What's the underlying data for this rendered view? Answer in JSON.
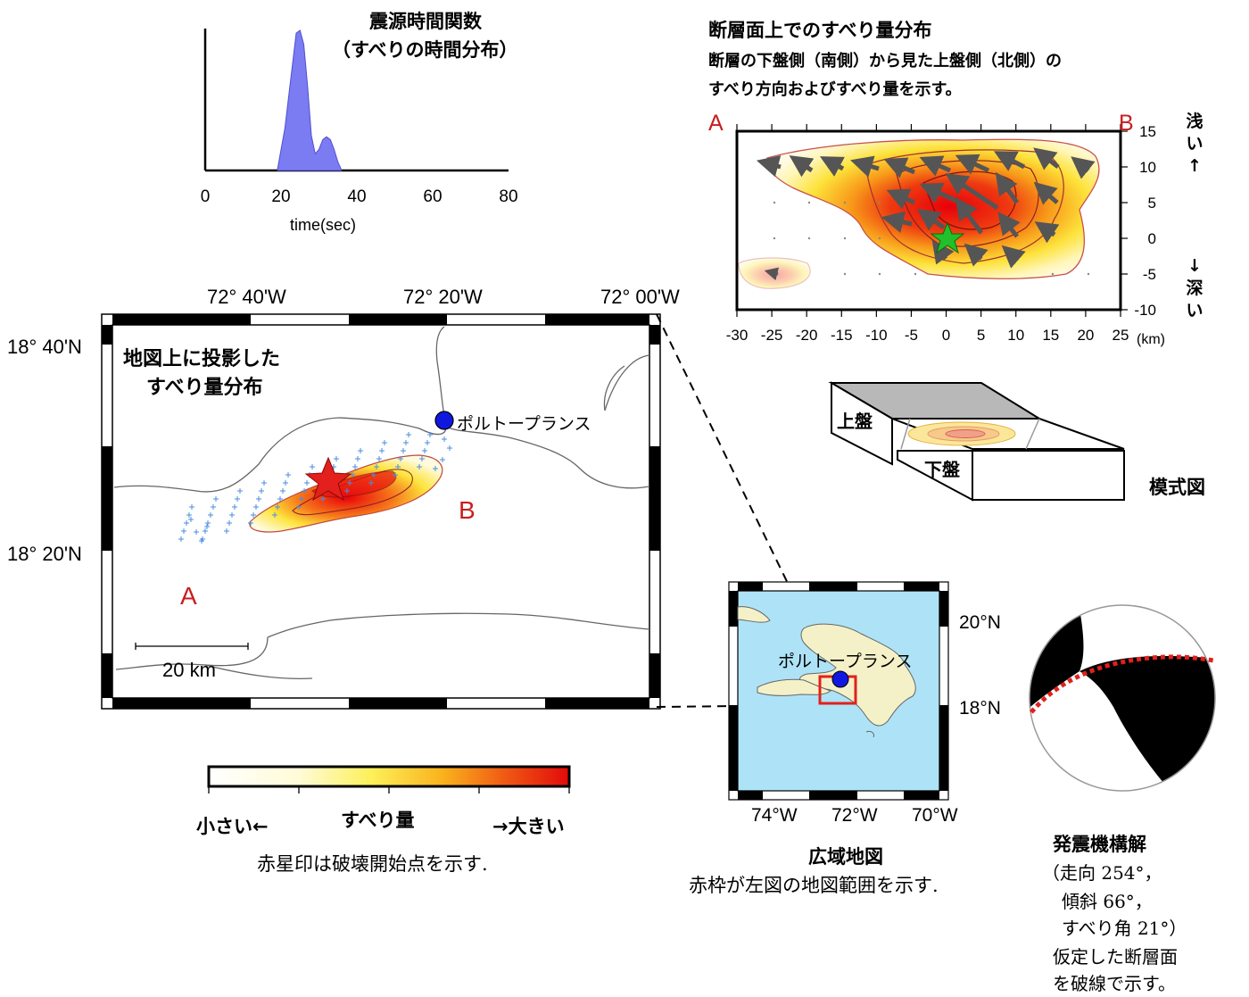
{
  "stf": {
    "title": "震源時間関数",
    "subtitle": "（すべりの時間分布）",
    "xlabel": "time(sec)",
    "xticks": [
      "0",
      "20",
      "40",
      "60",
      "80"
    ],
    "pulse_color": "#7b7bf2"
  },
  "chart_data": {
    "type": "area",
    "title": "震源時間関数",
    "xlabel": "time(sec)",
    "xlim": [
      0,
      80
    ],
    "x": [
      19,
      21,
      23,
      24,
      25,
      26,
      27,
      28,
      29,
      30,
      31,
      32,
      33,
      34,
      35,
      36
    ],
    "values": [
      0,
      0.3,
      0.75,
      0.98,
      1.0,
      0.9,
      0.6,
      0.25,
      0.12,
      0.15,
      0.22,
      0.24,
      0.22,
      0.15,
      0.06,
      0
    ]
  },
  "fault_slip": {
    "title": "断層面上でのすべり量分布",
    "desc_line1": "断層の下盤側（南側）から見た上盤側（北側）の",
    "desc_line2": "すべり方向およびすべり量を示す。",
    "label_a": "A",
    "label_b": "B",
    "xticks": [
      "-30",
      "-25",
      "-20",
      "-15",
      "-10",
      "-5",
      "0",
      "5",
      "10",
      "15",
      "20",
      "25"
    ],
    "yticks": [
      "15",
      "10",
      "5",
      "0",
      "-5",
      "-10"
    ],
    "km_label": "(km)",
    "shallow_chars": [
      "浅",
      "い",
      "↑"
    ],
    "deep_chars": [
      "↓",
      "深",
      "い"
    ],
    "hypocenter_color": "#22c02a"
  },
  "schematic": {
    "upper_label": "上盤",
    "lower_label": "下盤",
    "caption": "模式図"
  },
  "map": {
    "lon_labels": [
      "72° 40'W",
      "72° 20'W",
      "72° 00'W"
    ],
    "lat_labels": [
      "18° 40'N",
      "18° 20'N"
    ],
    "title_line1": "地図上に投影した",
    "title_line2": "すべり量分布",
    "city": "ポルトープランス",
    "label_a": "A",
    "label_b": "B",
    "scale": "20 km",
    "epicenter_color": "#e3201b",
    "city_color": "#1018e0"
  },
  "colorbar": {
    "small": "小さい←",
    "mid": "すべり量",
    "large": "→大きい",
    "note": "赤星印は破壊開始点を示す."
  },
  "regional": {
    "lat_labels": [
      "20°N",
      "18°N"
    ],
    "lon_labels": [
      "74°W",
      "72°W",
      "70°W"
    ],
    "city": "ポルトープランス",
    "title": "広域地図",
    "caption": "赤枠が左図の地図範囲を示す.",
    "sea_color": "#aee3f7",
    "land_color": "#f4f1c9"
  },
  "mechanism": {
    "title": "発震機構解",
    "line1": "（走向 254°，",
    "line2": "傾斜 66°，",
    "line3": "すべり角 21°）",
    "line4": "仮定した断層面",
    "line5": "を破線で示す。"
  }
}
